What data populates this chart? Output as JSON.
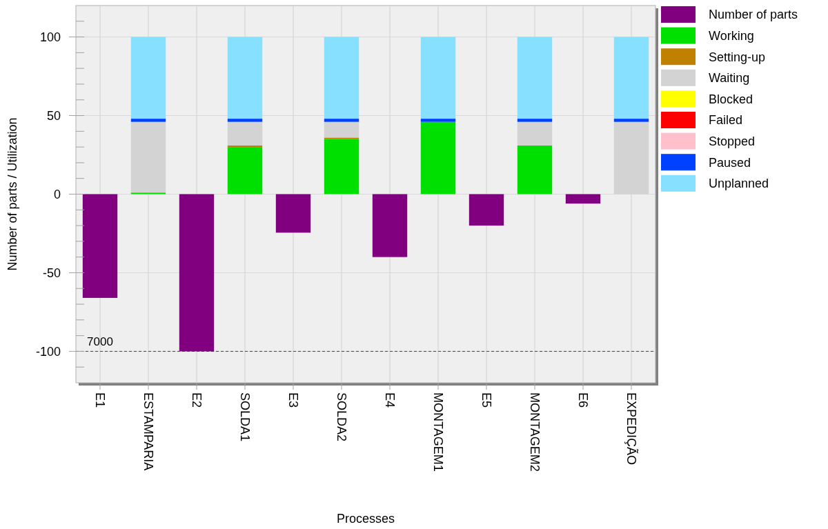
{
  "chart_data": {
    "type": "bar",
    "stacked": true,
    "xlabel": "Processes",
    "ylabel": "Number of parts / Utilization",
    "categories": [
      "E1",
      "ESTAMPARIA",
      "E2",
      "SOLDA1",
      "E3",
      "SOLDA2",
      "E4",
      "MONTAGEM1",
      "E5",
      "MONTAGEM2",
      "E6",
      "EXPEDIÇÃO"
    ],
    "series": [
      {
        "name": "Number of parts",
        "color": "#800080",
        "values": [
          -66,
          null,
          -100,
          null,
          -24.5,
          null,
          -40,
          null,
          -20,
          null,
          -6,
          null
        ]
      },
      {
        "name": "Working",
        "color": "#00e000",
        "values": [
          null,
          1,
          null,
          30,
          null,
          35,
          null,
          46,
          null,
          31,
          null,
          0
        ]
      },
      {
        "name": "Setting-up",
        "color": "#c08000",
        "values": [
          null,
          0,
          null,
          1,
          null,
          1,
          null,
          0,
          null,
          0,
          null,
          0
        ]
      },
      {
        "name": "Waiting",
        "color": "#d3d3d3",
        "values": [
          null,
          45,
          null,
          15,
          null,
          10,
          null,
          0,
          null,
          15,
          null,
          46
        ]
      },
      {
        "name": "Blocked",
        "color": "#ffff00",
        "values": [
          null,
          0,
          null,
          0,
          null,
          0,
          null,
          0,
          null,
          0,
          null,
          0
        ]
      },
      {
        "name": "Failed",
        "color": "#ff0000",
        "values": [
          null,
          0,
          null,
          0,
          null,
          0,
          null,
          0,
          null,
          0,
          null,
          0
        ]
      },
      {
        "name": "Stopped",
        "color": "#ffc0cb",
        "values": [
          null,
          0,
          null,
          0,
          null,
          0,
          null,
          0,
          null,
          0,
          null,
          0
        ]
      },
      {
        "name": "Paused",
        "color": "#0040ff",
        "values": [
          null,
          2,
          null,
          2,
          null,
          2,
          null,
          2,
          null,
          2,
          null,
          2
        ]
      },
      {
        "name": "Unplanned",
        "color": "#87e0ff",
        "values": [
          null,
          52,
          null,
          52,
          null,
          52,
          null,
          52,
          null,
          52,
          null,
          52
        ]
      }
    ],
    "ylim": [
      -120,
      120
    ],
    "yticks": [
      {
        "value": -110,
        "label": null
      },
      -100,
      {
        "value": -90,
        "label": null
      },
      {
        "value": -80,
        "label": null
      },
      {
        "value": -70,
        "label": null
      },
      {
        "value": -60,
        "label": null
      },
      -50,
      {
        "value": -40,
        "label": null
      },
      {
        "value": -30,
        "label": null
      },
      {
        "value": -20,
        "label": null
      },
      {
        "value": -10,
        "label": null
      },
      0,
      {
        "value": 10,
        "label": null
      },
      {
        "value": 20,
        "label": null
      },
      {
        "value": 30,
        "label": null
      },
      {
        "value": 40,
        "label": null
      },
      50,
      {
        "value": 60,
        "label": null
      },
      {
        "value": 70,
        "label": null
      },
      {
        "value": 80,
        "label": null
      },
      {
        "value": 90,
        "label": null
      },
      100,
      {
        "value": 110,
        "label": null
      }
    ],
    "ref_lines": [
      {
        "axis": "y",
        "value": -100,
        "color": "#404040",
        "line_style": "dashed"
      }
    ],
    "annotations": [
      {
        "text": "7000",
        "x": "E1",
        "y": -100
      }
    ],
    "grid": true,
    "legend": "top right"
  }
}
